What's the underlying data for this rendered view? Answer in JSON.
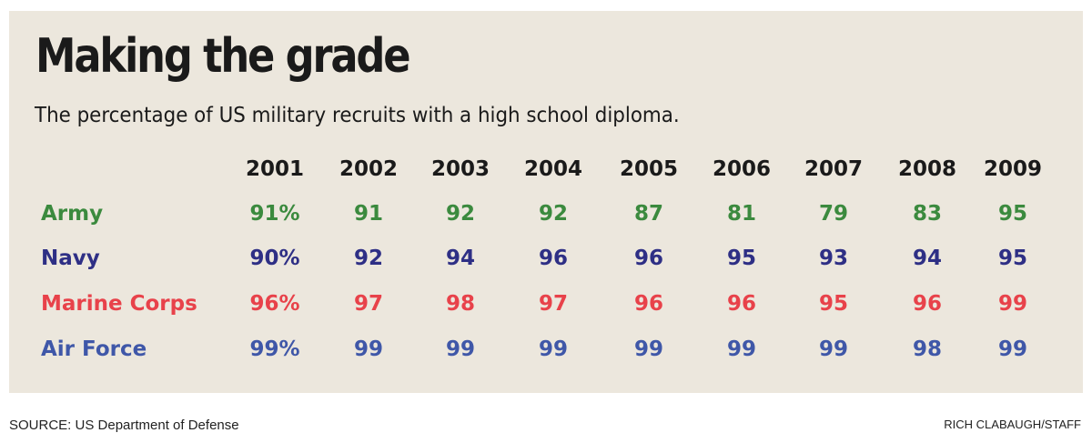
{
  "chart_data": {
    "type": "table",
    "title": "Making the grade",
    "subtitle": "The percentage of US military recruits with a high school diploma.",
    "categories": [
      "2001",
      "2002",
      "2003",
      "2004",
      "2005",
      "2006",
      "2007",
      "2008",
      "2009"
    ],
    "series": [
      {
        "name": "Army",
        "color": "#3b8a3e",
        "values": [
          91,
          91,
          92,
          92,
          87,
          81,
          79,
          83,
          95
        ],
        "labels": [
          "91%",
          "91",
          "92",
          "92",
          "87",
          "81",
          "79",
          "83",
          "95"
        ]
      },
      {
        "name": "Navy",
        "color": "#2e2f85",
        "values": [
          90,
          92,
          94,
          96,
          96,
          95,
          93,
          94,
          95
        ],
        "labels": [
          "90%",
          "92",
          "94",
          "96",
          "96",
          "95",
          "93",
          "94",
          "95"
        ]
      },
      {
        "name": "Marine Corps",
        "color": "#e8424a",
        "values": [
          96,
          97,
          98,
          97,
          96,
          96,
          95,
          96,
          99
        ],
        "labels": [
          "96%",
          "97",
          "98",
          "97",
          "96",
          "96",
          "95",
          "96",
          "99"
        ]
      },
      {
        "name": "Air Force",
        "color": "#3f57a8",
        "values": [
          99,
          99,
          99,
          99,
          99,
          99,
          99,
          98,
          99
        ],
        "labels": [
          "99%",
          "99",
          "99",
          "99",
          "99",
          "99",
          "99",
          "98",
          "99"
        ]
      }
    ],
    "source": "SOURCE: US Department of Defense",
    "credit": "RICH CLABAUGH/STAFF"
  }
}
